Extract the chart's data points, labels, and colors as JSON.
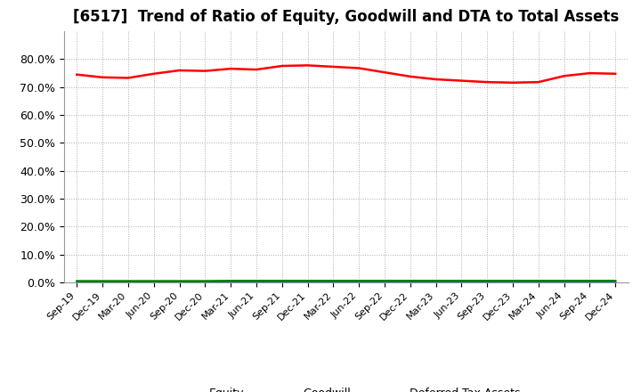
{
  "title": "[6517]  Trend of Ratio of Equity, Goodwill and DTA to Total Assets",
  "x_labels": [
    "Sep-19",
    "Dec-19",
    "Mar-20",
    "Jun-20",
    "Sep-20",
    "Dec-20",
    "Mar-21",
    "Jun-21",
    "Sep-21",
    "Dec-21",
    "Mar-22",
    "Jun-22",
    "Sep-22",
    "Dec-22",
    "Mar-23",
    "Jun-23",
    "Sep-23",
    "Dec-23",
    "Mar-24",
    "Jun-24",
    "Sep-24",
    "Dec-24"
  ],
  "equity": [
    0.745,
    0.735,
    0.733,
    0.748,
    0.76,
    0.758,
    0.766,
    0.763,
    0.776,
    0.778,
    0.773,
    0.768,
    0.753,
    0.738,
    0.728,
    0.723,
    0.718,
    0.716,
    0.718,
    0.74,
    0.75,
    0.748
  ],
  "goodwill": [
    0.0,
    0.0,
    0.0,
    0.0,
    0.0,
    0.0,
    0.0,
    0.0,
    0.0,
    0.0,
    0.0,
    0.0,
    0.0,
    0.0,
    0.0,
    0.0,
    0.0,
    0.0,
    0.0,
    0.0,
    0.0,
    0.0
  ],
  "dta": [
    0.004,
    0.004,
    0.004,
    0.004,
    0.004,
    0.004,
    0.005,
    0.005,
    0.005,
    0.005,
    0.005,
    0.005,
    0.005,
    0.005,
    0.005,
    0.005,
    0.005,
    0.005,
    0.005,
    0.005,
    0.005,
    0.005
  ],
  "equity_color": "#ff0000",
  "goodwill_color": "#0000ff",
  "dta_color": "#008000",
  "ylim": [
    0.0,
    0.9
  ],
  "yticks": [
    0.0,
    0.1,
    0.2,
    0.3,
    0.4,
    0.5,
    0.6,
    0.7,
    0.8
  ],
  "background_color": "#ffffff",
  "grid_color": "#aaaaaa",
  "title_fontsize": 12,
  "line_width": 1.8
}
